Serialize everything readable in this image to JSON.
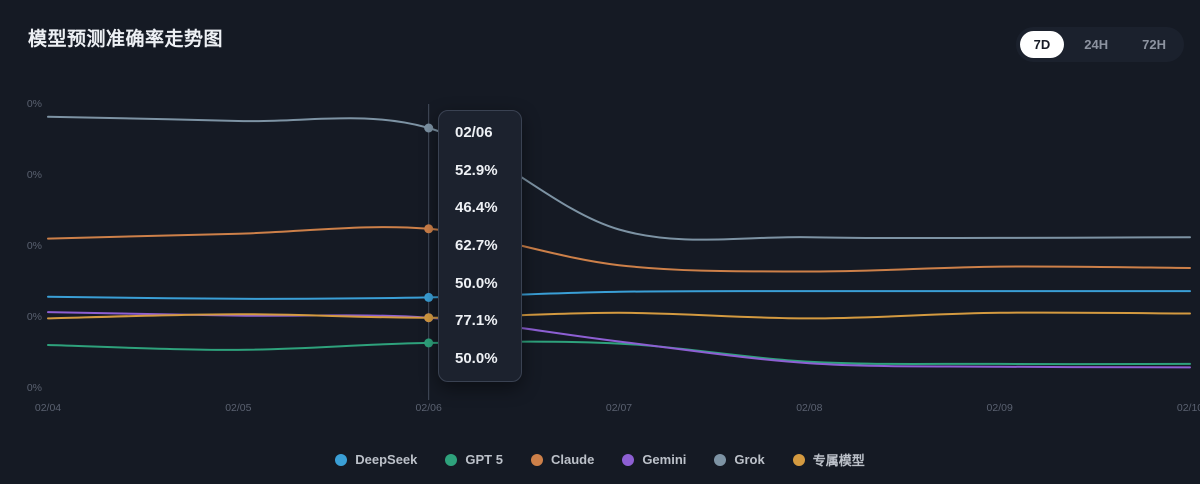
{
  "header": {
    "title": "模型预测准确率走势图",
    "range_options": [
      {
        "label": "7D",
        "active": true
      },
      {
        "label": "24H",
        "active": false
      },
      {
        "label": "72H",
        "active": false
      }
    ]
  },
  "chart_data": {
    "type": "line",
    "x": [
      "02/04",
      "02/05",
      "02/06",
      "02/07",
      "02/08",
      "02/09",
      "02/10"
    ],
    "series": [
      {
        "name": "DeepSeek",
        "color": "#3a9fd6",
        "values": [
          53.0,
          52.7,
          52.9,
          53.7,
          53.8,
          53.8,
          53.8
        ]
      },
      {
        "name": "GPT 5",
        "color": "#2ea27c",
        "values": [
          46.1,
          45.4,
          46.4,
          46.3,
          43.7,
          43.4,
          43.4
        ]
      },
      {
        "name": "Claude",
        "color": "#cd8049",
        "values": [
          61.3,
          62.0,
          62.7,
          57.5,
          56.6,
          57.3,
          57.1
        ]
      },
      {
        "name": "Gemini",
        "color": "#8d5fd3",
        "values": [
          50.8,
          50.3,
          50.0,
          46.6,
          43.5,
          43.0,
          42.9
        ]
      },
      {
        "name": "Grok",
        "color": "#7d93a4",
        "values": [
          78.7,
          78.1,
          77.1,
          62.6,
          61.5,
          61.4,
          61.5
        ]
      },
      {
        "name": "专属模型",
        "color": "#d49a40",
        "values": [
          49.9,
          50.5,
          50.0,
          50.7,
          49.9,
          50.7,
          50.6
        ]
      }
    ],
    "yaxis_tick_labels": [
      "0%",
      "0%",
      "0%",
      "0%",
      "0%"
    ],
    "grid": false,
    "legend_position": "bottom",
    "tooltip": {
      "date": "02/06",
      "index": 2,
      "values": [
        "52.9%",
        "46.4%",
        "62.7%",
        "50.0%",
        "77.1%",
        "50.0%"
      ]
    }
  },
  "colors": {
    "background": "#151a24",
    "tooltip_bg": "#1c222e",
    "tooltip_border": "#3a4252",
    "crosshair": "#454e5e",
    "axis_text": "#5a6170",
    "legend_text": "#bcc1c9",
    "active_pill_bg": "#ffffff",
    "active_pill_text": "#161a25"
  }
}
